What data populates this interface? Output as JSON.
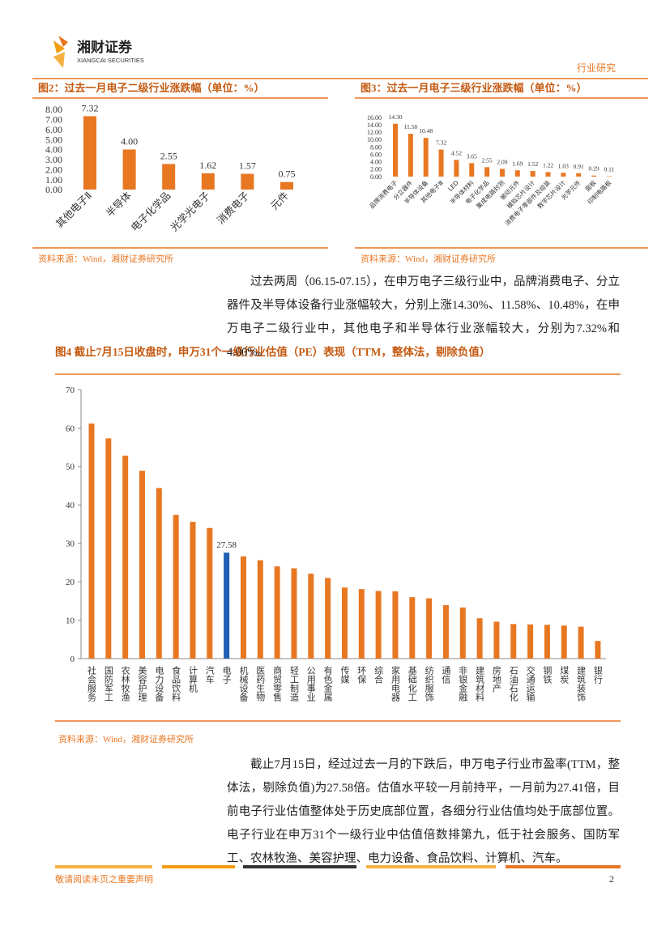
{
  "header": {
    "brand": "湘财证券",
    "brand_en": "XIANGCAI SECURITIES",
    "section": "行业研究"
  },
  "chart_data": [
    {
      "type": "bar",
      "title": "图2：过去一月电子二级行业涨跌幅（单位：%）",
      "categories": [
        "其他电子Ⅱ",
        "半导体",
        "电子化学品",
        "光学光电子",
        "消费电子",
        "元件"
      ],
      "values": [
        7.32,
        4.0,
        2.55,
        1.62,
        1.57,
        0.75
      ],
      "value_labels": [
        "7.32",
        "4.00",
        "2.55",
        "1.62",
        "1.57",
        "0.75"
      ],
      "color": "#e87722",
      "ylim": [
        0,
        8
      ],
      "yticks": [
        {
          "value": 0,
          "label": "0.00"
        },
        {
          "value": 1,
          "label": "1.00"
        },
        {
          "value": 2,
          "label": "2.00"
        },
        {
          "value": 3,
          "label": "3.00"
        },
        {
          "value": 4,
          "label": "4.00"
        },
        {
          "value": 5,
          "label": "5.00"
        },
        {
          "value": 6,
          "label": "6.00"
        },
        {
          "value": 7,
          "label": "7.00"
        },
        {
          "value": 8,
          "label": "8.00"
        }
      ],
      "source": "资料来源：Wind，湘财证券研究所"
    },
    {
      "type": "bar",
      "title": "图3：过去一月电子三级行业涨跌幅（单位：%）",
      "categories": [
        "品牌消费电子",
        "分立器件",
        "半导体设备",
        "其他电子Ⅲ",
        "LED",
        "半导体材料",
        "电子化学品",
        "集成电路封测",
        "被动元件",
        "模拟芯片设计",
        "消费电子零部件及组装",
        "数字芯片设计",
        "光学元件",
        "面板",
        "印制电路板"
      ],
      "values": [
        14.3,
        11.58,
        10.48,
        7.32,
        4.52,
        3.65,
        2.55,
        2.09,
        1.69,
        1.52,
        1.22,
        1.03,
        0.91,
        0.29,
        0.11
      ],
      "value_labels": [
        "14.30",
        "11.58",
        "10.48",
        "7.32",
        "4.52",
        "3.65",
        "2.55",
        "2.09",
        "1.69",
        "1.52",
        "1.22",
        "1.03",
        "0.91",
        "0.29",
        "0.11"
      ],
      "color": "#e87722",
      "ylim": [
        0,
        16
      ],
      "yticks": [
        {
          "value": 0,
          "label": "0.00"
        },
        {
          "value": 2,
          "label": "2.00"
        },
        {
          "value": 4,
          "label": "4.00"
        },
        {
          "value": 6,
          "label": "6.00"
        },
        {
          "value": 8,
          "label": "8.00"
        },
        {
          "value": 10,
          "label": "10.00"
        },
        {
          "value": 12,
          "label": "12.00"
        },
        {
          "value": 14,
          "label": "14.00"
        },
        {
          "value": 16,
          "label": "16.00"
        }
      ],
      "source": "资料来源：Wind，湘财证券研究所"
    },
    {
      "type": "bar",
      "title": "图4 截止7月15日收盘时，申万31个一级行业估值（PE）表现（TTM，整体法，剔除负值）",
      "categories": [
        "社会服务",
        "国防军工",
        "农林牧渔",
        "美容护理",
        "电力设备",
        "食品饮料",
        "计算机",
        "汽车",
        "电子",
        "机械设备",
        "医药生物",
        "商贸零售",
        "轻工制造",
        "公用事业",
        "有色金属",
        "传媒",
        "环保",
        "综合",
        "家用电器",
        "基础化工",
        "纺织服饰",
        "通信",
        "非银金融",
        "建筑材料",
        "房地产",
        "石油石化",
        "交通运输",
        "钢铁",
        "煤炭",
        "建筑装饰",
        "银行"
      ],
      "values": [
        61.2,
        57.3,
        52.8,
        48.9,
        44.4,
        37.4,
        35.6,
        34.0,
        27.58,
        26.6,
        25.6,
        24.0,
        23.5,
        22.1,
        21.0,
        18.5,
        18.1,
        17.6,
        17.5,
        16.0,
        15.7,
        13.9,
        13.3,
        10.5,
        9.6,
        9.0,
        8.9,
        8.8,
        8.6,
        8.3,
        4.6
      ],
      "value_labels": [
        null,
        null,
        null,
        null,
        null,
        null,
        null,
        null,
        "27.58",
        null,
        null,
        null,
        null,
        null,
        null,
        null,
        null,
        null,
        null,
        null,
        null,
        null,
        null,
        null,
        null,
        null,
        null,
        null,
        null,
        null,
        null
      ],
      "colors": [
        "#e87722",
        "#e87722",
        "#e87722",
        "#e87722",
        "#e87722",
        "#e87722",
        "#e87722",
        "#e87722",
        "#1f5fb4",
        "#e87722",
        "#e87722",
        "#e87722",
        "#e87722",
        "#e87722",
        "#e87722",
        "#e87722",
        "#e87722",
        "#e87722",
        "#e87722",
        "#e87722",
        "#e87722",
        "#e87722",
        "#e87722",
        "#e87722",
        "#e87722",
        "#e87722",
        "#e87722",
        "#e87722",
        "#e87722",
        "#e87722",
        "#e87722"
      ],
      "ylim": [
        0,
        70
      ],
      "yticks": [
        0,
        10,
        20,
        30,
        40,
        50,
        60,
        70
      ],
      "source": "资料来源：Wind，湘财证券研究所"
    }
  ],
  "paragraphs": [
    "过去两周（06.15-07.15），在申万电子三级行业中，品牌消费电子、分立器件及半导体设备行业涨幅较大，分别上涨14.30%、11.58%、10.48%，在申万电子二级行业中，其他电子和半导体行业涨幅较大，分别为7.32%和4.00%。",
    "截止7月15日，经过过去一月的下跌后，申万电子行业市盈率(TTM，整体法，剔除负值)为27.58倍。估值水平较一月前持平，一月前为27.41倍，目前电子行业估值整体处于历史底部位置，各细分行业估值均处于底部位置。电子行业在申万31个一级行业中估值倍数排第九，低于社会服务、国防军工、农林牧渔、美容护理、电力设备、食品饮料、计算机、汽车。"
  ],
  "footer": {
    "notice": "敬请阅读末页之重要声明",
    "page": "2"
  }
}
